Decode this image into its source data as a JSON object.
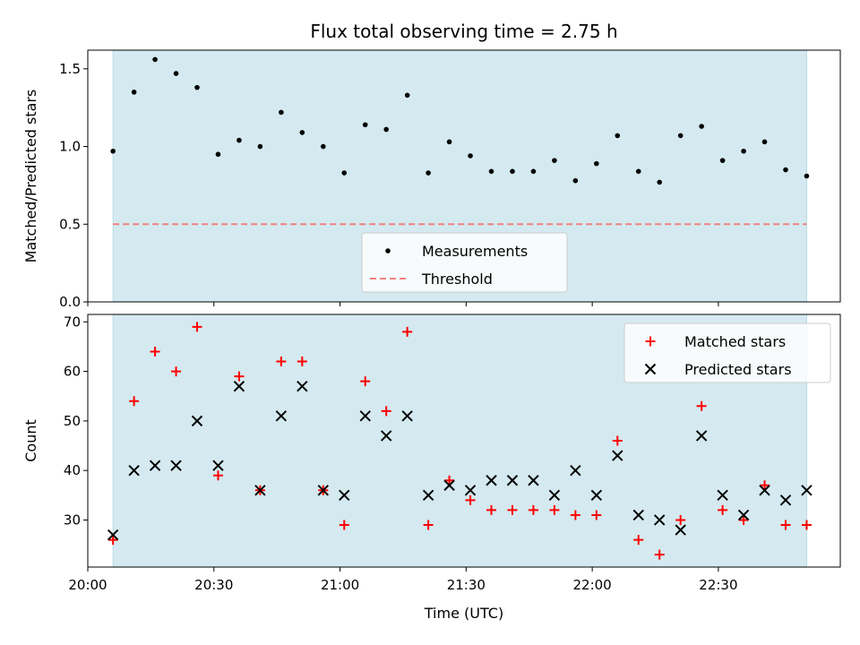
{
  "chart_data": [
    {
      "type": "scatter",
      "title": "Flux total observing time = 2.75 h",
      "xlabel": "",
      "ylabel": "Matched/Predicted stars",
      "xlim": [
        "20:00",
        "22:59"
      ],
      "ylim": [
        0,
        1.62
      ],
      "yticks": [
        0.0,
        0.5,
        1.0,
        1.5
      ],
      "ytick_labels": [
        "0.0",
        "0.5",
        "1.0",
        "1.5"
      ],
      "observing_window": [
        "20:06",
        "22:51"
      ],
      "observing_window_color": "#d4eaf0",
      "legend_position": "lower-center",
      "series": [
        {
          "name": "Measurements",
          "marker": "dot",
          "color": "#000000",
          "x": [
            "20:06",
            "20:11",
            "20:16",
            "20:21",
            "20:26",
            "20:31",
            "20:36",
            "20:41",
            "20:46",
            "20:51",
            "20:56",
            "21:01",
            "21:06",
            "21:11",
            "21:16",
            "21:21",
            "21:26",
            "21:31",
            "21:36",
            "21:41",
            "21:46",
            "21:51",
            "21:56",
            "22:01",
            "22:06",
            "22:11",
            "22:16",
            "22:21",
            "22:26",
            "22:31",
            "22:36",
            "22:41",
            "22:46",
            "22:51"
          ],
          "y": [
            0.97,
            1.35,
            1.56,
            1.47,
            1.38,
            0.95,
            1.04,
            1.0,
            1.22,
            1.09,
            1.0,
            0.83,
            1.14,
            1.11,
            1.33,
            0.83,
            1.03,
            0.94,
            0.84,
            0.84,
            0.84,
            0.91,
            0.78,
            0.89,
            1.07,
            0.84,
            0.77,
            1.07,
            1.13,
            0.91,
            0.97,
            1.03,
            0.85,
            0.81
          ]
        },
        {
          "name": "Threshold",
          "marker": "dashed-line",
          "color": "#f08080",
          "x": [
            "20:06",
            "22:51"
          ],
          "y": [
            0.5,
            0.5
          ]
        }
      ]
    },
    {
      "type": "scatter",
      "title": "",
      "xlabel": "Time (UTC)",
      "ylabel": "Count",
      "xlim": [
        "20:00",
        "22:59"
      ],
      "ylim": [
        20.5,
        71.5
      ],
      "xticks": [
        "20:00",
        "20:30",
        "21:00",
        "21:30",
        "22:00",
        "22:30"
      ],
      "yticks": [
        30,
        40,
        50,
        60,
        70
      ],
      "ytick_labels": [
        "30",
        "40",
        "50",
        "60",
        "70"
      ],
      "observing_window": [
        "20:06",
        "22:51"
      ],
      "observing_window_color": "#d4eaf0",
      "legend_position": "upper-right",
      "series": [
        {
          "name": "Matched stars",
          "marker": "plus",
          "color": "#ff0000",
          "x": [
            "20:06",
            "20:11",
            "20:16",
            "20:21",
            "20:26",
            "20:31",
            "20:36",
            "20:41",
            "20:46",
            "20:51",
            "20:56",
            "21:01",
            "21:06",
            "21:11",
            "21:16",
            "21:21",
            "21:26",
            "21:31",
            "21:36",
            "21:41",
            "21:46",
            "21:51",
            "21:56",
            "22:01",
            "22:06",
            "22:11",
            "22:16",
            "22:21",
            "22:26",
            "22:31",
            "22:36",
            "22:41",
            "22:46",
            "22:51"
          ],
          "y": [
            26,
            54,
            64,
            60,
            69,
            39,
            59,
            36,
            62,
            62,
            36,
            29,
            58,
            52,
            68,
            29,
            38,
            34,
            32,
            32,
            32,
            32,
            31,
            31,
            46,
            26,
            23,
            30,
            53,
            32,
            30,
            37,
            29,
            29
          ]
        },
        {
          "name": "Predicted stars",
          "marker": "x",
          "color": "#000000",
          "x": [
            "20:06",
            "20:11",
            "20:16",
            "20:21",
            "20:26",
            "20:31",
            "20:36",
            "20:41",
            "20:46",
            "20:51",
            "20:56",
            "21:01",
            "21:06",
            "21:11",
            "21:16",
            "21:21",
            "21:26",
            "21:31",
            "21:36",
            "21:41",
            "21:46",
            "21:51",
            "21:56",
            "22:01",
            "22:06",
            "22:11",
            "22:16",
            "22:21",
            "22:26",
            "22:31",
            "22:36",
            "22:41",
            "22:46",
            "22:51"
          ],
          "y": [
            27,
            40,
            41,
            41,
            50,
            41,
            57,
            36,
            51,
            57,
            36,
            35,
            51,
            47,
            51,
            35,
            37,
            36,
            38,
            38,
            38,
            35,
            40,
            35,
            43,
            31,
            30,
            28,
            47,
            35,
            31,
            36,
            34,
            36
          ]
        }
      ]
    }
  ]
}
